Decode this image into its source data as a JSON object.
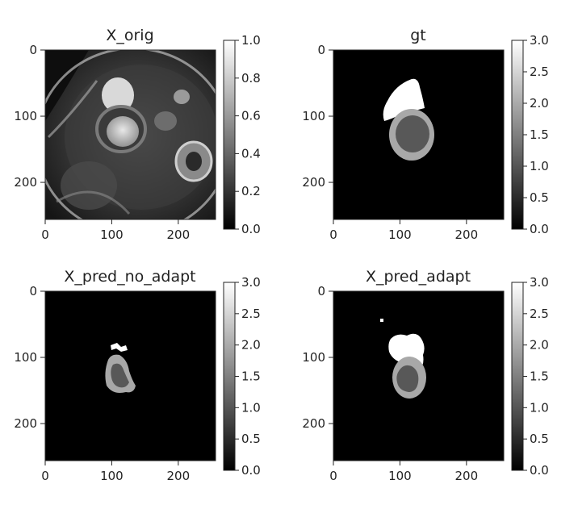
{
  "chart_data": [
    {
      "type": "heatmap",
      "title": "X_orig",
      "content": "mri-image",
      "xlim": [
        0,
        256
      ],
      "ylim": [
        256,
        0
      ],
      "xticks": [
        0,
        100,
        200
      ],
      "yticks": [
        0,
        100,
        200
      ],
      "colorbar": {
        "min": 0.0,
        "max": 1.0,
        "ticks": [
          0.0,
          0.2,
          0.4,
          0.6,
          0.8,
          1.0
        ],
        "tick_labels": [
          "0.0",
          "0.2",
          "0.4",
          "0.6",
          "0.8",
          "1.0"
        ]
      }
    },
    {
      "type": "heatmap",
      "title": "gt",
      "content": "segmentation",
      "xlim": [
        0,
        256
      ],
      "ylim": [
        256,
        0
      ],
      "xticks": [
        0,
        100,
        200
      ],
      "yticks": [
        0,
        100,
        200
      ],
      "colorbar": {
        "min": 0.0,
        "max": 3.0,
        "ticks": [
          0.0,
          0.5,
          1.0,
          1.5,
          2.0,
          2.5,
          3.0
        ],
        "tick_labels": [
          "0.0",
          "0.5",
          "1.0",
          "1.5",
          "2.0",
          "2.5",
          "3.0"
        ]
      }
    },
    {
      "type": "heatmap",
      "title": "X_pred_no_adapt",
      "content": "segmentation",
      "xlim": [
        0,
        256
      ],
      "ylim": [
        256,
        0
      ],
      "xticks": [
        0,
        100,
        200
      ],
      "yticks": [
        0,
        100,
        200
      ],
      "colorbar": {
        "min": 0.0,
        "max": 3.0,
        "ticks": [
          0.0,
          0.5,
          1.0,
          1.5,
          2.0,
          2.5,
          3.0
        ],
        "tick_labels": [
          "0.0",
          "0.5",
          "1.0",
          "1.5",
          "2.0",
          "2.5",
          "3.0"
        ]
      }
    },
    {
      "type": "heatmap",
      "title": "X_pred_adapt",
      "content": "segmentation",
      "xlim": [
        0,
        256
      ],
      "ylim": [
        256,
        0
      ],
      "xticks": [
        0,
        100,
        200
      ],
      "yticks": [
        0,
        100,
        200
      ],
      "colorbar": {
        "min": 0.0,
        "max": 3.0,
        "ticks": [
          0.0,
          0.5,
          1.0,
          1.5,
          2.0,
          2.5,
          3.0
        ],
        "tick_labels": [
          "0.0",
          "0.5",
          "1.0",
          "1.5",
          "2.0",
          "2.5",
          "3.0"
        ]
      }
    }
  ],
  "colormap": "gray"
}
